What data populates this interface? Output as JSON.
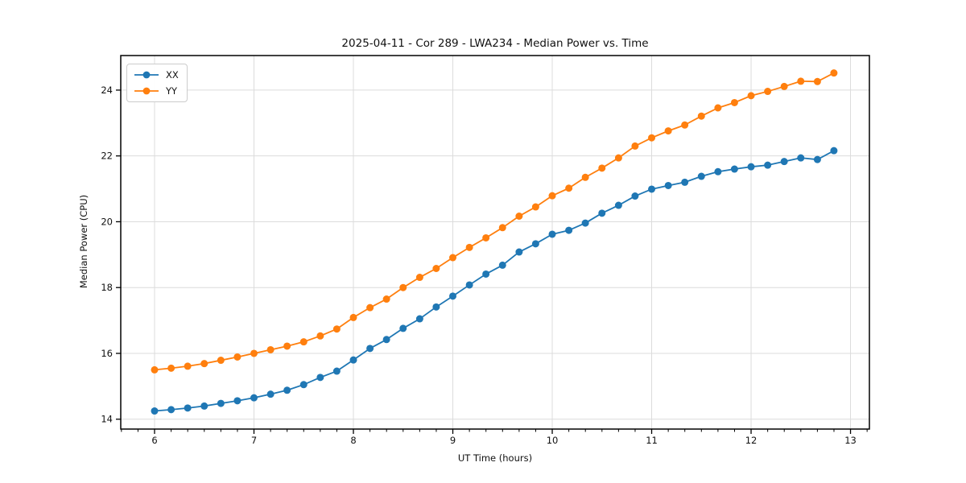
{
  "chart_data": {
    "type": "line",
    "title": "2025-04-11 - Cor 289 - LWA234 - Median Power vs. Time",
    "xlabel": "UT Time (hours)",
    "ylabel": "Median Power (CPU)",
    "xlim": [
      5.66,
      13.19
    ],
    "ylim": [
      13.7,
      25.05
    ],
    "xticks": [
      6,
      7,
      8,
      9,
      10,
      11,
      12,
      13
    ],
    "yticks": [
      14,
      16,
      18,
      20,
      22,
      24
    ],
    "x_minor_step": 0.16667,
    "grid": true,
    "legend_position": "upper left",
    "x": [
      6.0,
      6.167,
      6.333,
      6.5,
      6.667,
      6.833,
      7.0,
      7.167,
      7.333,
      7.5,
      7.667,
      7.833,
      8.0,
      8.167,
      8.333,
      8.5,
      8.667,
      8.833,
      9.0,
      9.167,
      9.333,
      9.5,
      9.667,
      9.833,
      10.0,
      10.167,
      10.333,
      10.5,
      10.667,
      10.833,
      11.0,
      11.167,
      11.333,
      11.5,
      11.667,
      11.833,
      12.0,
      12.167,
      12.333,
      12.5,
      12.667,
      12.833
    ],
    "series": [
      {
        "name": "XX",
        "color": "#1f77b4",
        "values": [
          14.25,
          14.29,
          14.34,
          14.4,
          14.48,
          14.56,
          14.65,
          14.76,
          14.88,
          15.05,
          15.27,
          15.46,
          15.8,
          16.15,
          16.42,
          16.76,
          17.05,
          17.41,
          17.74,
          18.08,
          18.41,
          18.68,
          19.08,
          19.33,
          19.62,
          19.74,
          19.96,
          20.26,
          20.5,
          20.78,
          20.99,
          21.1,
          21.2,
          21.38,
          21.52,
          21.6,
          21.67,
          21.72,
          21.83,
          21.94,
          21.89,
          22.16
        ]
      },
      {
        "name": "YY",
        "color": "#ff7f0e",
        "values": [
          15.5,
          15.55,
          15.61,
          15.69,
          15.79,
          15.89,
          16.0,
          16.11,
          16.22,
          16.35,
          16.53,
          16.74,
          17.09,
          17.39,
          17.65,
          18.0,
          18.31,
          18.58,
          18.91,
          19.22,
          19.51,
          19.82,
          20.17,
          20.45,
          20.79,
          21.02,
          21.35,
          21.63,
          21.94,
          22.3,
          22.55,
          22.76,
          22.94,
          23.21,
          23.46,
          23.62,
          23.83,
          23.96,
          24.11,
          24.27,
          24.26,
          24.52
        ]
      }
    ],
    "colors": {
      "grid": "#dcdcdc",
      "spine": "#000000",
      "tick": "#000000",
      "text": "#111111",
      "background": "#ffffff"
    }
  }
}
